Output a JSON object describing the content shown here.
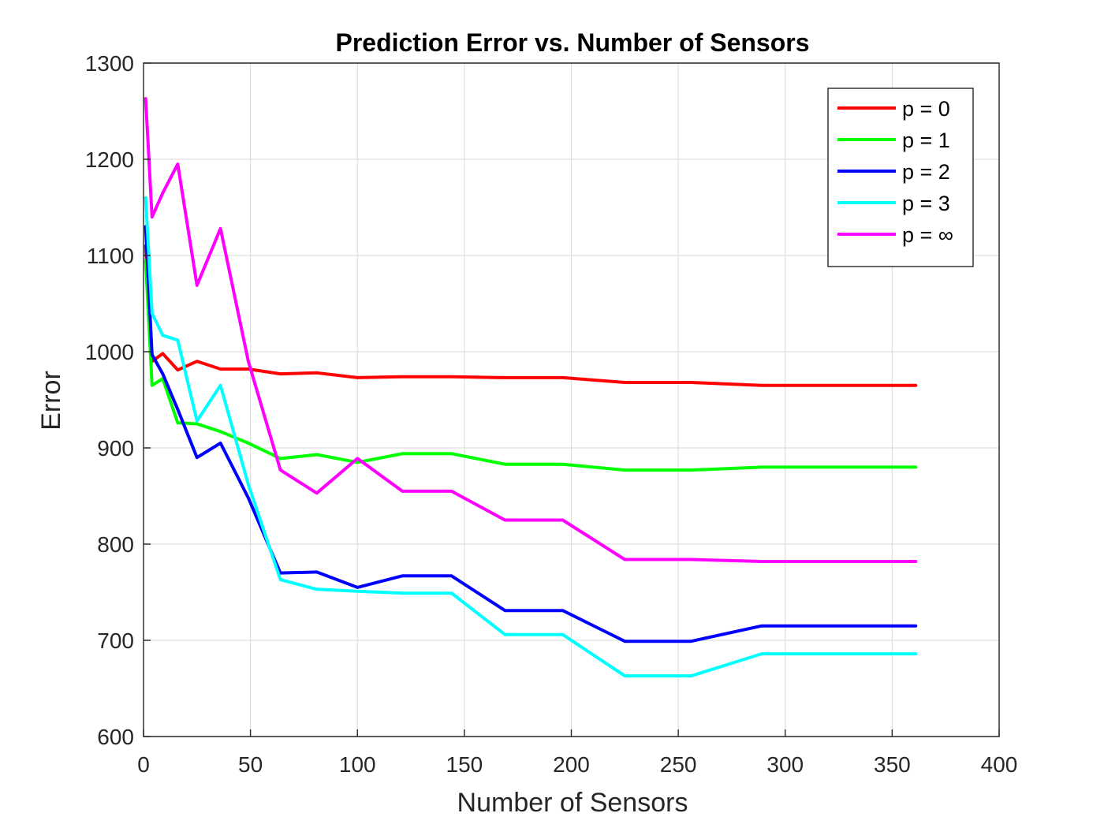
{
  "chart_data": {
    "type": "line",
    "title": "Prediction Error vs. Number of Sensors",
    "xlabel": "Number of Sensors",
    "ylabel": "Error",
    "xlim": [
      0,
      400
    ],
    "ylim": [
      600,
      1300
    ],
    "xticks": [
      0,
      50,
      100,
      150,
      200,
      250,
      300,
      350,
      400
    ],
    "yticks": [
      600,
      700,
      800,
      900,
      1000,
      1100,
      1200,
      1300
    ],
    "grid": true,
    "legend_position": "top-right",
    "x": [
      1,
      4,
      9,
      16,
      25,
      36,
      49,
      64,
      81,
      100,
      121,
      144,
      169,
      196,
      225,
      256,
      289,
      324,
      361
    ],
    "series": [
      {
        "name": "p = 0",
        "color": "#ff0000",
        "values": [
          1110,
          990,
          998,
          981,
          990,
          982,
          982,
          977,
          978,
          973,
          974,
          974,
          973,
          973,
          968,
          968,
          965,
          965,
          965
        ]
      },
      {
        "name": "p = 1",
        "color": "#00ff00",
        "values": [
          1095,
          965,
          972,
          926,
          925,
          917,
          905,
          889,
          893,
          885,
          894,
          894,
          883,
          883,
          877,
          877,
          880,
          880,
          880
        ]
      },
      {
        "name": "p = 2",
        "color": "#0000ff",
        "values": [
          1130,
          997,
          977,
          940,
          890,
          905,
          848,
          770,
          771,
          755,
          767,
          767,
          731,
          731,
          699,
          699,
          715,
          715,
          715
        ]
      },
      {
        "name": "p = 3",
        "color": "#00ffff",
        "values": [
          1160,
          1040,
          1017,
          1012,
          928,
          965,
          862,
          763,
          753,
          751,
          749,
          749,
          706,
          706,
          663,
          663,
          686,
          686,
          686
        ]
      },
      {
        "name": "p = ∞",
        "color": "#ff00ff",
        "values": [
          1263,
          1140,
          1165,
          1195,
          1069,
          1128,
          990,
          877,
          853,
          889,
          855,
          855,
          825,
          825,
          784,
          784,
          782,
          782,
          782
        ]
      }
    ]
  }
}
